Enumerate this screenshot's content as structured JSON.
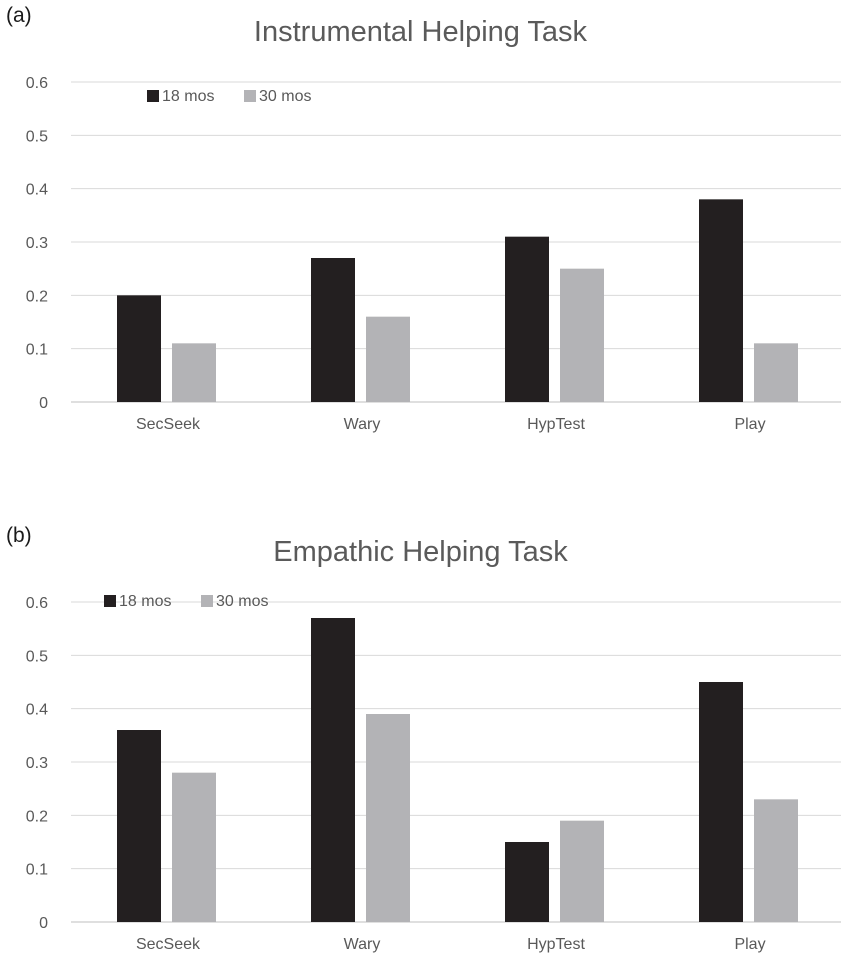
{
  "chart_data": [
    {
      "panel_label": "(a)",
      "type": "bar",
      "title": "Instrumental Helping Task",
      "categories": [
        "SecSeek",
        "Wary",
        "HypTest",
        "Play"
      ],
      "series": [
        {
          "name": "18 mos",
          "values": [
            0.2,
            0.27,
            0.31,
            0.38
          ],
          "color": "#231f20"
        },
        {
          "name": "30 mos",
          "values": [
            0.11,
            0.16,
            0.25,
            0.11
          ],
          "color": "#b3b3b6"
        }
      ],
      "y_ticks": [
        "0",
        "0.1",
        "0.2",
        "0.3",
        "0.4",
        "0.5",
        "0.6"
      ],
      "ylim": [
        0,
        0.6
      ],
      "grid": true,
      "legend_position": "top-left"
    },
    {
      "panel_label": "(b)",
      "type": "bar",
      "title": "Empathic Helping Task",
      "categories": [
        "SecSeek",
        "Wary",
        "HypTest",
        "Play"
      ],
      "series": [
        {
          "name": "18 mos",
          "values": [
            0.36,
            0.57,
            0.15,
            0.45
          ],
          "color": "#231f20"
        },
        {
          "name": "30 mos",
          "values": [
            0.28,
            0.39,
            0.19,
            0.23
          ],
          "color": "#b3b3b6"
        }
      ],
      "y_ticks": [
        "0",
        "0.1",
        "0.2",
        "0.3",
        "0.4",
        "0.5",
        "0.6"
      ],
      "ylim": [
        0,
        0.6
      ],
      "grid": true,
      "legend_position": "top-left"
    }
  ]
}
